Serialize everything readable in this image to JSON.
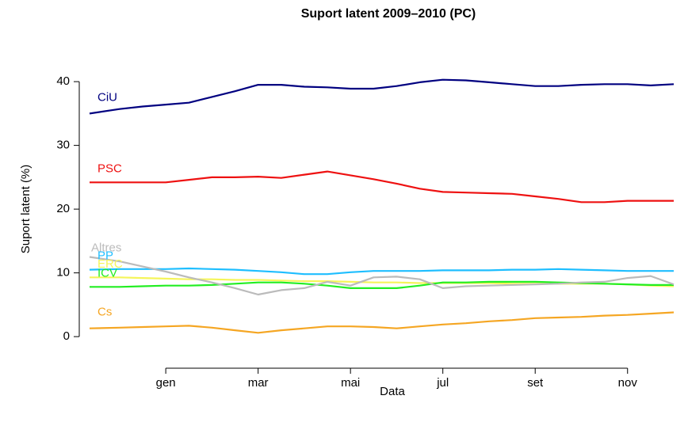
{
  "chart_data": {
    "type": "line",
    "title": "Suport latent 2009–2010 (PC)",
    "x_label": "Data",
    "y_label": "Suport latent (%)",
    "x": [
      -0.65,
      0,
      0.5,
      1,
      1.5,
      2,
      2.5,
      3,
      3.5,
      4,
      4.5,
      5,
      5.5,
      6,
      6.5,
      7,
      7.5,
      8,
      8.5,
      9,
      9.5,
      10,
      10.5,
      11,
      11.5,
      12
    ],
    "xlim": [
      -0.65,
      12
    ],
    "xticks": [
      {
        "value": 1,
        "label": "gen"
      },
      {
        "value": 3,
        "label": "mar"
      },
      {
        "value": 5,
        "label": "mai"
      },
      {
        "value": 7,
        "label": "jul"
      },
      {
        "value": 9,
        "label": "set"
      },
      {
        "value": 11,
        "label": "nov"
      }
    ],
    "ylim": [
      -1.6,
      42
    ],
    "yticks": [
      0,
      10,
      20,
      30,
      40
    ],
    "series": [
      {
        "name": "CiU",
        "color": "#000080",
        "values": [
          35,
          35.7,
          36.1,
          36.4,
          36.7,
          37.6,
          38.5,
          39.5,
          39.5,
          39.2,
          39.1,
          38.9,
          38.9,
          39.3,
          39.9,
          40.3,
          40.2,
          39.9,
          39.6,
          39.3,
          39.3,
          39.5,
          39.6,
          39.6,
          39.4,
          39.6
        ]
      },
      {
        "name": "PSC",
        "color": "#ee1111",
        "values": [
          24.2,
          24.2,
          24.2,
          24.2,
          24.6,
          25,
          25,
          25.1,
          24.9,
          25.4,
          25.9,
          25.3,
          24.7,
          24,
          23.2,
          22.7,
          22.6,
          22.5,
          22.4,
          22,
          21.6,
          21.1,
          21.1,
          21.3,
          21.3,
          21.3
        ]
      },
      {
        "name": "PP",
        "color": "#1ebeff",
        "values": [
          10.5,
          10.6,
          10.6,
          10.6,
          10.7,
          10.6,
          10.5,
          10.3,
          10.1,
          9.8,
          9.8,
          10.1,
          10.3,
          10.3,
          10.3,
          10.4,
          10.4,
          10.4,
          10.5,
          10.5,
          10.6,
          10.5,
          10.4,
          10.3,
          10.3,
          10.3
        ]
      },
      {
        "name": "ERC",
        "color": "#f5f55a",
        "values": [
          9.3,
          9.3,
          9.2,
          9.1,
          9.0,
          9.0,
          8.9,
          8.9,
          8.8,
          8.7,
          8.7,
          8.6,
          8.5,
          8.5,
          8.4,
          8.4,
          8.4,
          8.4,
          8.3,
          8.3,
          8.3,
          8.3,
          8.3,
          8.2,
          8.0,
          7.9
        ]
      },
      {
        "name": "ICV",
        "color": "#22ee22",
        "values": [
          7.8,
          7.8,
          7.9,
          8.0,
          8.0,
          8.1,
          8.3,
          8.5,
          8.5,
          8.3,
          8.0,
          7.6,
          7.6,
          7.6,
          8.0,
          8.5,
          8.5,
          8.6,
          8.6,
          8.6,
          8.5,
          8.4,
          8.3,
          8.2,
          8.1,
          8.1
        ]
      },
      {
        "name": "Altres",
        "color": "#bbbbbb",
        "values": [
          12.5,
          11.8,
          11.0,
          10.2,
          9.3,
          8.5,
          7.6,
          6.6,
          7.3,
          7.6,
          8.6,
          8.0,
          9.3,
          9.4,
          9.0,
          7.6,
          7.9,
          8.0,
          8.1,
          8.2,
          8.3,
          8.5,
          8.6,
          9.2,
          9.5,
          8.2
        ]
      },
      {
        "name": "Cs",
        "color": "#f5a623",
        "values": [
          1.3,
          1.4,
          1.5,
          1.6,
          1.7,
          1.4,
          1.0,
          0.6,
          1.0,
          1.3,
          1.6,
          1.6,
          1.5,
          1.3,
          1.6,
          1.9,
          2.1,
          2.4,
          2.6,
          2.9,
          3.0,
          3.1,
          3.3,
          3.4,
          3.6,
          3.8
        ]
      }
    ]
  }
}
